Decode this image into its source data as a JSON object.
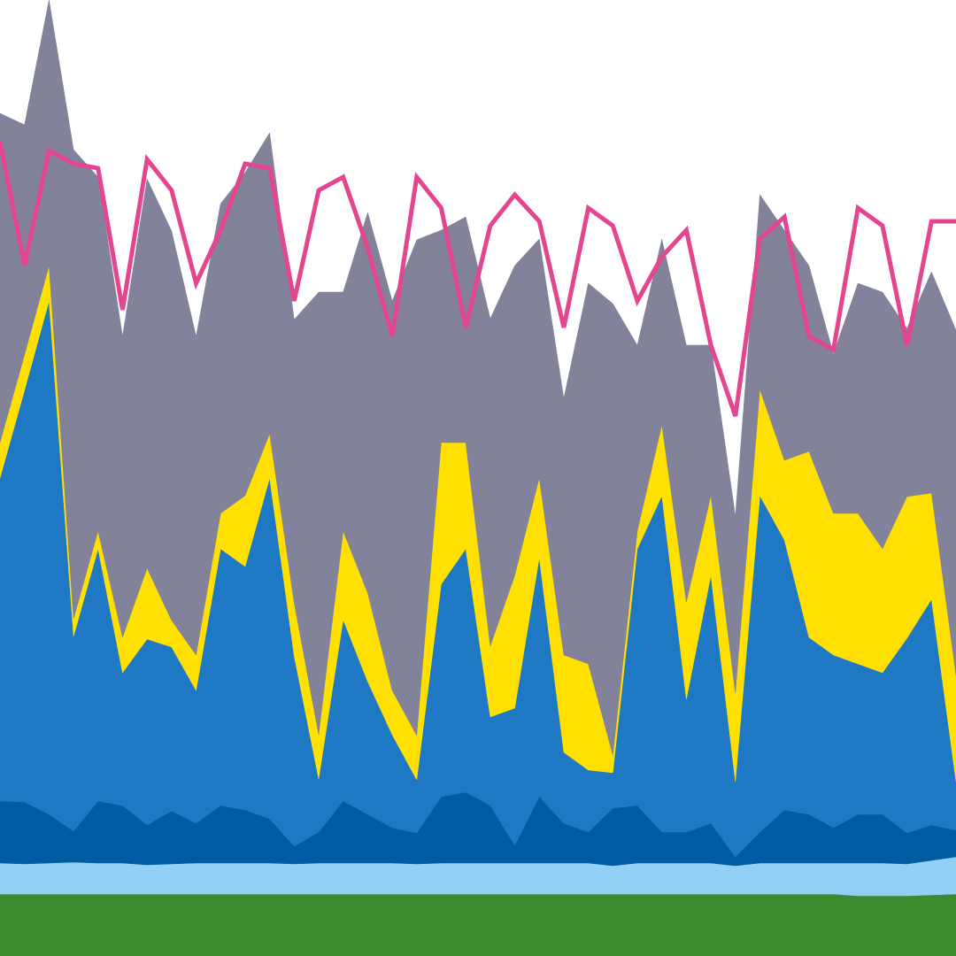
{
  "chart_data": {
    "type": "stacked_area",
    "x": [
      0,
      1,
      2,
      3,
      4,
      5,
      6,
      7,
      8,
      9,
      10,
      11,
      12,
      13,
      14,
      15,
      16,
      17,
      18,
      19,
      20,
      21,
      22,
      23,
      24,
      25,
      26,
      27,
      28,
      29,
      30,
      31,
      32,
      33,
      34,
      35,
      36,
      37,
      38,
      39
    ],
    "xlim": [
      0,
      39
    ],
    "ylim": [
      0,
      108
    ],
    "series": [
      {
        "color": "#3e8a2f",
        "values": [
          7.0,
          7.0,
          7.0,
          7.0,
          7.0,
          7.0,
          7.0,
          7.0,
          7.0,
          7.0,
          7.0,
          7.0,
          7.0,
          7.0,
          7.0,
          7.0,
          7.0,
          7.0,
          7.0,
          7.0,
          7.0,
          7.0,
          7.0,
          7.0,
          7.0,
          7.0,
          7.0,
          7.0,
          7.0,
          7.0,
          7.0,
          7.0,
          7.0,
          7.0,
          7.0,
          6.8,
          6.8,
          6.8,
          6.9,
          7.0
        ]
      },
      {
        "color": "#92d0f5",
        "values": [
          3.5,
          3.4,
          3.5,
          3.6,
          3.5,
          3.5,
          3.3,
          3.4,
          3.5,
          3.5,
          3.5,
          3.5,
          3.4,
          3.5,
          3.5,
          3.5,
          3.5,
          3.4,
          3.5,
          3.5,
          3.5,
          3.5,
          3.5,
          3.5,
          3.5,
          3.2,
          3.5,
          3.5,
          3.5,
          3.5,
          3.2,
          3.5,
          3.5,
          3.5,
          3.5,
          3.7,
          3.7,
          3.6,
          3.9,
          4.2
        ]
      },
      {
        "color": "#005ca2",
        "values": [
          7.0,
          7.0,
          5.5,
          3.5,
          7.0,
          6.5,
          4.5,
          6.0,
          4.5,
          6.5,
          6.0,
          5.0,
          2.0,
          3.5,
          7.0,
          5.5,
          4.0,
          3.5,
          7.5,
          8.0,
          6.5,
          2.0,
          7.5,
          4.5,
          3.5,
          6.5,
          6.5,
          3.5,
          3.5,
          4.5,
          1.0,
          3.5,
          6.0,
          5.5,
          4.0,
          5.5,
          5.5,
          3.5,
          4.0,
          3.0
        ]
      },
      {
        "color": "#1f78c4",
        "values": [
          36.5,
          46.5,
          58.0,
          22.0,
          28.5,
          15.0,
          21.0,
          18.5,
          15.0,
          29.0,
          27.5,
          38.5,
          21.5,
          6.0,
          20.5,
          15.0,
          10.5,
          6.0,
          24.0,
          27.5,
          10.0,
          15.5,
          27.0,
          8.0,
          7.0,
          4.0,
          29.0,
          38.0,
          15.0,
          28.0,
          8.5,
          38.0,
          30.5,
          20.0,
          19.5,
          17.0,
          16.0,
          22.0,
          25.5,
          5.5
        ]
      },
      {
        "color": "#ffe000",
        "values": [
          4.0,
          4.0,
          4.0,
          2.0,
          2.0,
          4.0,
          8.0,
          3.0,
          4.0,
          4.0,
          8.0,
          5.0,
          6.0,
          5.0,
          10.0,
          10.0,
          5.0,
          5.0,
          16.0,
          12.0,
          8.0,
          15.0,
          9.0,
          11.0,
          12.0,
          2.0,
          2.0,
          8.0,
          11.0,
          9.0,
          10.0,
          12.0,
          9.0,
          21.0,
          16.0,
          17.0,
          14.0,
          16.0,
          12.0,
          12.0
        ]
      },
      {
        "color": "#82829a",
        "values": [
          37.2,
          26.0,
          30.0,
          53.0,
          40.0,
          34.0,
          44.0,
          44.0,
          36.0,
          35.0,
          36.5,
          34.0,
          32.0,
          50.0,
          27.0,
          43.0,
          44.0,
          56.0,
          24.0,
          25.5,
          37.0,
          35.0,
          27.0,
          29.0,
          43.0,
          51.0,
          21.0,
          21.0,
          29.0,
          17.0,
          20.0,
          22.0,
          26.0,
          21.0,
          18.0,
          26.0,
          29.0,
          19.0,
          25.0,
          39.0
        ]
      }
    ],
    "line": {
      "color": "#e5458f",
      "values": [
        92.0,
        78.0,
        91.0,
        89.5,
        89.0,
        73.0,
        90.0,
        86.5,
        76.0,
        82.0,
        89.5,
        89.0,
        74.0,
        86.5,
        88.0,
        80.0,
        70.0,
        88.0,
        84.5,
        71.0,
        82.5,
        86.0,
        83.0,
        71.0,
        84.5,
        82.5,
        74.0,
        79.0,
        82.0,
        69.0,
        61.0,
        81.0,
        83.5,
        70.0,
        68.5,
        84.5,
        82.5,
        69.0,
        83.0,
        83.0
      ]
    }
  }
}
